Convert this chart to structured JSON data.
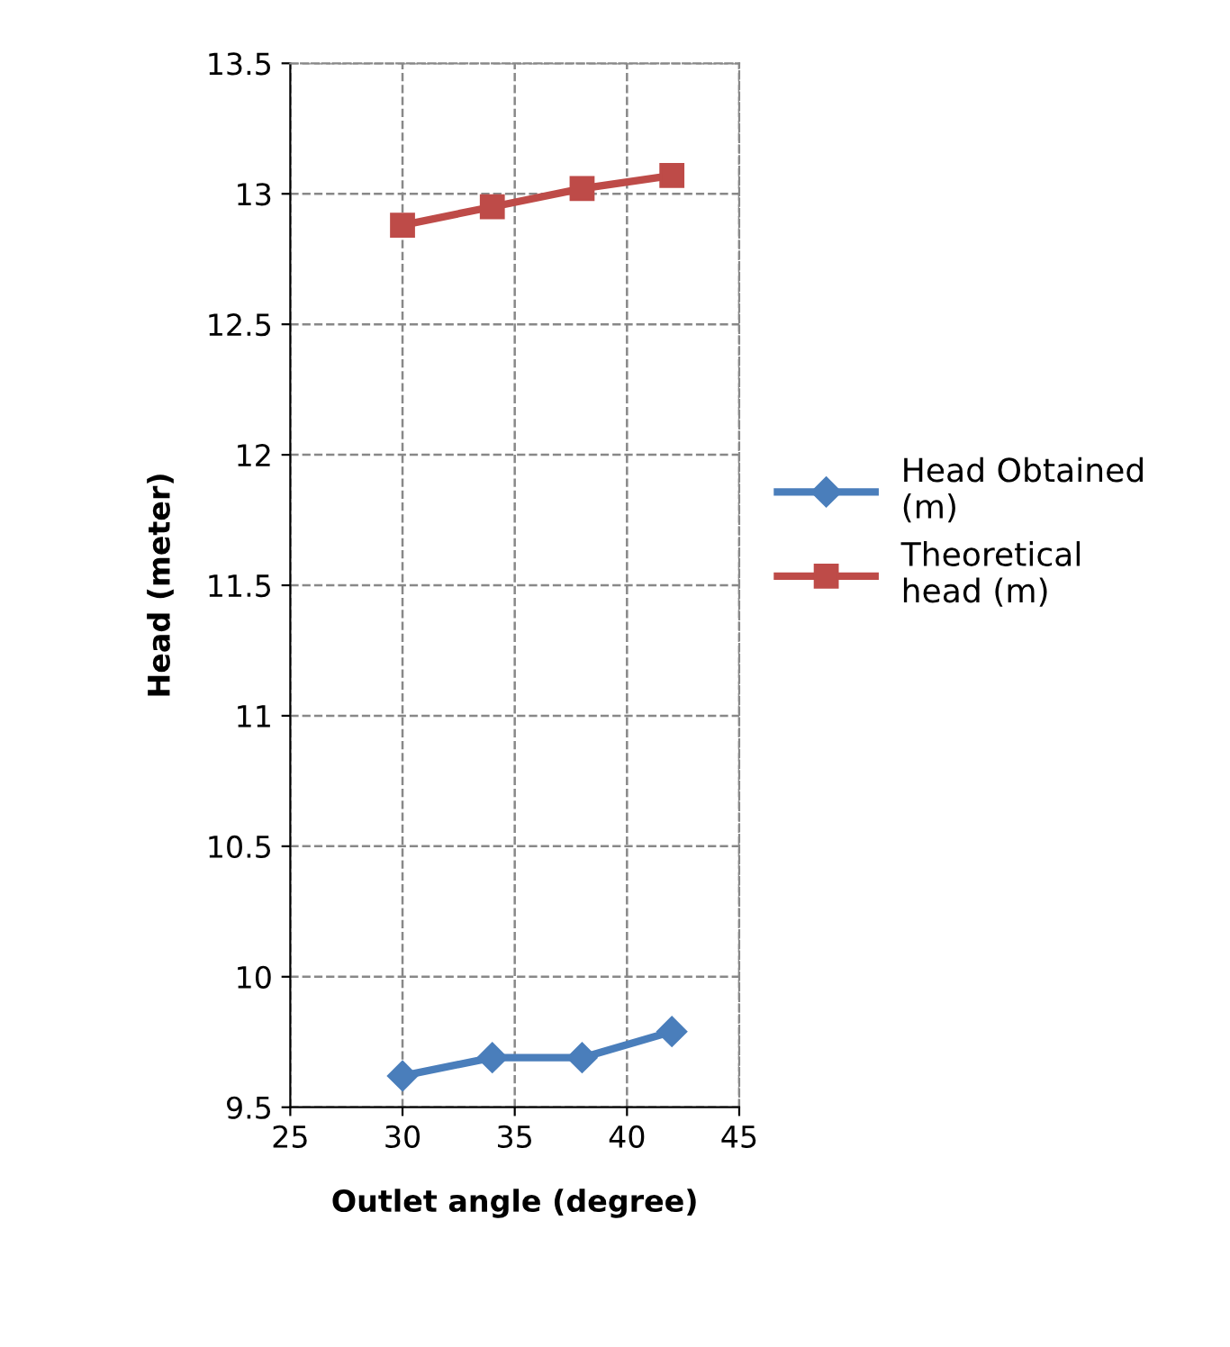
{
  "chart_data": {
    "type": "line",
    "xlabel": "Outlet angle (degree)",
    "ylabel": "Head (meter)",
    "x": [
      30,
      34,
      38,
      42
    ],
    "series": [
      {
        "name": "Head Obtained\n(m)",
        "color": "#4a7ebb",
        "values": [
          9.62,
          9.69,
          9.69,
          9.79
        ],
        "marker": "diamond"
      },
      {
        "name": "Theoretical\nhead (m)",
        "color": "#be4b48",
        "values": [
          12.88,
          12.95,
          13.02,
          13.07
        ],
        "marker": "square"
      }
    ],
    "xlim": [
      25,
      45
    ],
    "xticks": [
      25,
      30,
      35,
      40,
      45
    ],
    "ylim": [
      9.5,
      13.5
    ],
    "yticks": [
      9.5,
      10,
      10.5,
      11,
      11.5,
      12,
      12.5,
      13,
      13.5
    ],
    "grid": true,
    "legend": "right",
    "line_style": "solid"
  }
}
